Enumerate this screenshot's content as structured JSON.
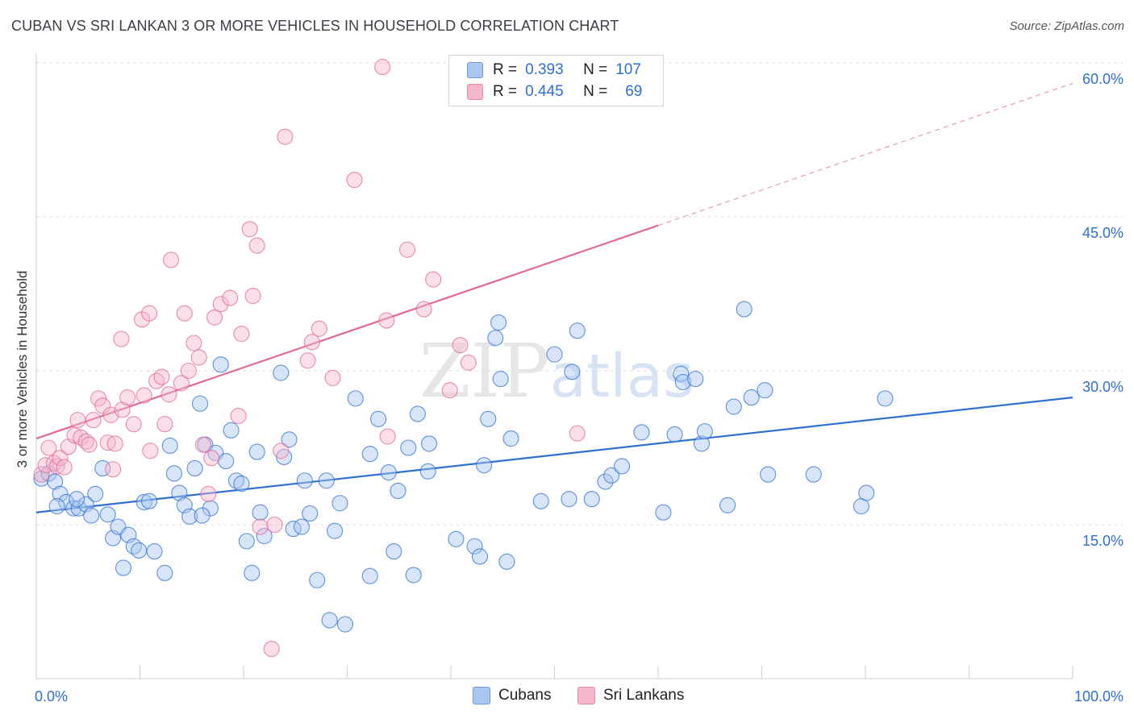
{
  "header": {
    "title": "CUBAN VS SRI LANKAN 3 OR MORE VEHICLES IN HOUSEHOLD CORRELATION CHART",
    "source": "Source: ZipAtlas.com"
  },
  "colors": {
    "blue": "#2f6fd0",
    "blue_fill": "#a9c6f0",
    "pink": "#e0689a",
    "pink_fill": "#f4b6cb",
    "grid": "#dddddd",
    "axis_text": "#2f6fd0"
  },
  "legend_top": {
    "rows": [
      {
        "r_label": "R =",
        "r_value": "0.393",
        "n_label": "N =",
        "n_value": "107"
      },
      {
        "r_label": "R =",
        "r_value": "0.445",
        "n_label": "N =",
        "n_value": "69"
      }
    ]
  },
  "legend_bottom": {
    "items": [
      "Cubans",
      "Sri Lankans"
    ]
  },
  "chart_data": {
    "type": "scatter",
    "title": "CUBAN VS SRI LANKAN 3 OR MORE VEHICLES IN HOUSEHOLD CORRELATION CHART",
    "xlabel": "",
    "ylabel": "3 or more Vehicles in Household",
    "xlim": [
      0,
      100
    ],
    "ylim": [
      0,
      60
    ],
    "x_tick_labels": [
      "0.0%",
      "100.0%"
    ],
    "y_ticks": [
      15,
      30,
      45,
      60
    ],
    "y_tick_labels": [
      "15.0%",
      "30.0%",
      "45.0%",
      "60.0%"
    ],
    "watermark": "ZIPatlas",
    "series": [
      {
        "name": "Cubans",
        "r": 0.393,
        "n": 107,
        "trend": {
          "x0": 0,
          "y0": 16.2,
          "x1": 100,
          "y1": 27.4,
          "dashed_from": null
        },
        "points": [
          [
            0.5,
            19.5
          ],
          [
            1.2,
            20.0
          ],
          [
            1.8,
            19.2
          ],
          [
            2.3,
            18.0
          ],
          [
            2.9,
            17.2
          ],
          [
            3.6,
            16.6
          ],
          [
            4.1,
            16.6
          ],
          [
            4.8,
            17.0
          ],
          [
            5.3,
            15.9
          ],
          [
            5.7,
            18.0
          ],
          [
            6.4,
            20.5
          ],
          [
            6.9,
            16.0
          ],
          [
            7.4,
            13.7
          ],
          [
            7.9,
            14.8
          ],
          [
            8.4,
            10.8
          ],
          [
            8.9,
            14.0
          ],
          [
            9.4,
            12.9
          ],
          [
            9.9,
            12.5
          ],
          [
            10.4,
            17.2
          ],
          [
            10.9,
            17.3
          ],
          [
            11.4,
            12.4
          ],
          [
            12.4,
            10.3
          ],
          [
            12.9,
            22.7
          ],
          [
            13.3,
            20.0
          ],
          [
            13.8,
            18.1
          ],
          [
            14.3,
            16.9
          ],
          [
            14.8,
            15.8
          ],
          [
            15.3,
            20.5
          ],
          [
            15.8,
            26.8
          ],
          [
            16.3,
            22.8
          ],
          [
            16.8,
            16.6
          ],
          [
            17.3,
            22.0
          ],
          [
            17.8,
            30.6
          ],
          [
            18.3,
            21.2
          ],
          [
            18.8,
            24.2
          ],
          [
            19.3,
            19.3
          ],
          [
            19.8,
            19.0
          ],
          [
            20.3,
            13.4
          ],
          [
            20.8,
            10.3
          ],
          [
            21.3,
            22.1
          ],
          [
            21.6,
            16.2
          ],
          [
            22.0,
            13.9
          ],
          [
            23.6,
            29.8
          ],
          [
            23.9,
            21.6
          ],
          [
            24.4,
            23.3
          ],
          [
            24.8,
            14.6
          ],
          [
            25.6,
            14.8
          ],
          [
            25.9,
            19.3
          ],
          [
            26.4,
            16.1
          ],
          [
            27.1,
            9.6
          ],
          [
            28.0,
            19.3
          ],
          [
            28.3,
            5.7
          ],
          [
            28.8,
            14.4
          ],
          [
            29.3,
            17.1
          ],
          [
            29.8,
            5.3
          ],
          [
            30.8,
            27.3
          ],
          [
            32.2,
            21.9
          ],
          [
            32.2,
            10.0
          ],
          [
            33.0,
            25.3
          ],
          [
            34.0,
            20.1
          ],
          [
            34.5,
            12.4
          ],
          [
            34.9,
            18.3
          ],
          [
            35.9,
            22.5
          ],
          [
            36.4,
            10.1
          ],
          [
            36.8,
            25.8
          ],
          [
            37.8,
            20.2
          ],
          [
            37.9,
            22.9
          ],
          [
            40.5,
            13.6
          ],
          [
            42.3,
            12.9
          ],
          [
            42.8,
            11.9
          ],
          [
            43.2,
            20.8
          ],
          [
            43.6,
            25.3
          ],
          [
            44.3,
            33.2
          ],
          [
            44.8,
            29.2
          ],
          [
            44.6,
            34.7
          ],
          [
            45.4,
            11.4
          ],
          [
            45.8,
            23.4
          ],
          [
            48.7,
            17.3
          ],
          [
            50.0,
            31.6
          ],
          [
            51.4,
            17.5
          ],
          [
            51.7,
            29.9
          ],
          [
            52.2,
            33.9
          ],
          [
            53.6,
            17.5
          ],
          [
            54.9,
            19.2
          ],
          [
            55.5,
            19.8
          ],
          [
            56.5,
            20.7
          ],
          [
            58.4,
            24.0
          ],
          [
            60.5,
            16.2
          ],
          [
            61.6,
            23.8
          ],
          [
            62.2,
            29.7
          ],
          [
            62.4,
            28.9
          ],
          [
            63.6,
            29.2
          ],
          [
            64.2,
            22.9
          ],
          [
            64.5,
            24.1
          ],
          [
            66.7,
            16.9
          ],
          [
            67.3,
            26.5
          ],
          [
            68.3,
            36.0
          ],
          [
            69.0,
            27.4
          ],
          [
            70.3,
            28.1
          ],
          [
            70.6,
            19.9
          ],
          [
            75.0,
            19.9
          ],
          [
            79.6,
            16.8
          ],
          [
            80.1,
            18.1
          ],
          [
            81.9,
            27.3
          ],
          [
            2.0,
            16.8
          ],
          [
            3.9,
            17.5
          ],
          [
            16.0,
            15.9
          ]
        ]
      },
      {
        "name": "Sri Lankans",
        "r": 0.445,
        "n": 69,
        "trend": {
          "x0": 0,
          "y0": 23.4,
          "x1": 100,
          "y1": 58.0,
          "dashed_from": 60
        },
        "points": [
          [
            0.5,
            19.9
          ],
          [
            0.9,
            20.8
          ],
          [
            1.2,
            22.5
          ],
          [
            1.7,
            21.0
          ],
          [
            2.0,
            20.7
          ],
          [
            2.3,
            21.5
          ],
          [
            2.7,
            20.6
          ],
          [
            3.1,
            22.6
          ],
          [
            3.7,
            23.7
          ],
          [
            4.0,
            25.2
          ],
          [
            4.3,
            23.5
          ],
          [
            4.8,
            23.1
          ],
          [
            5.1,
            22.8
          ],
          [
            5.5,
            25.2
          ],
          [
            6.0,
            27.3
          ],
          [
            6.4,
            26.6
          ],
          [
            6.9,
            23.0
          ],
          [
            7.2,
            25.7
          ],
          [
            7.4,
            20.4
          ],
          [
            7.6,
            22.9
          ],
          [
            8.2,
            33.1
          ],
          [
            8.3,
            26.2
          ],
          [
            8.8,
            27.4
          ],
          [
            9.4,
            24.8
          ],
          [
            10.2,
            35.0
          ],
          [
            10.4,
            27.6
          ],
          [
            10.9,
            35.6
          ],
          [
            11.0,
            22.2
          ],
          [
            11.6,
            29.0
          ],
          [
            12.1,
            29.4
          ],
          [
            12.4,
            24.8
          ],
          [
            12.8,
            27.7
          ],
          [
            13.0,
            40.8
          ],
          [
            14.0,
            28.8
          ],
          [
            14.3,
            35.6
          ],
          [
            14.7,
            30.0
          ],
          [
            15.2,
            32.7
          ],
          [
            15.7,
            31.3
          ],
          [
            16.1,
            22.8
          ],
          [
            16.6,
            18.0
          ],
          [
            16.9,
            21.5
          ],
          [
            17.2,
            35.2
          ],
          [
            17.8,
            36.5
          ],
          [
            18.7,
            37.1
          ],
          [
            19.5,
            25.6
          ],
          [
            19.8,
            33.6
          ],
          [
            20.6,
            43.8
          ],
          [
            20.9,
            37.3
          ],
          [
            21.3,
            42.2
          ],
          [
            21.6,
            14.8
          ],
          [
            22.7,
            2.9
          ],
          [
            23.0,
            15.0
          ],
          [
            23.6,
            22.2
          ],
          [
            24.0,
            52.8
          ],
          [
            26.2,
            31.0
          ],
          [
            26.6,
            32.8
          ],
          [
            27.3,
            34.1
          ],
          [
            28.6,
            29.3
          ],
          [
            30.7,
            48.6
          ],
          [
            33.4,
            59.6
          ],
          [
            33.8,
            34.9
          ],
          [
            33.9,
            23.6
          ],
          [
            35.8,
            41.8
          ],
          [
            37.4,
            36.0
          ],
          [
            38.3,
            38.9
          ],
          [
            39.9,
            28.1
          ],
          [
            40.9,
            32.5
          ],
          [
            41.7,
            30.8
          ],
          [
            52.2,
            23.9
          ]
        ]
      }
    ]
  }
}
